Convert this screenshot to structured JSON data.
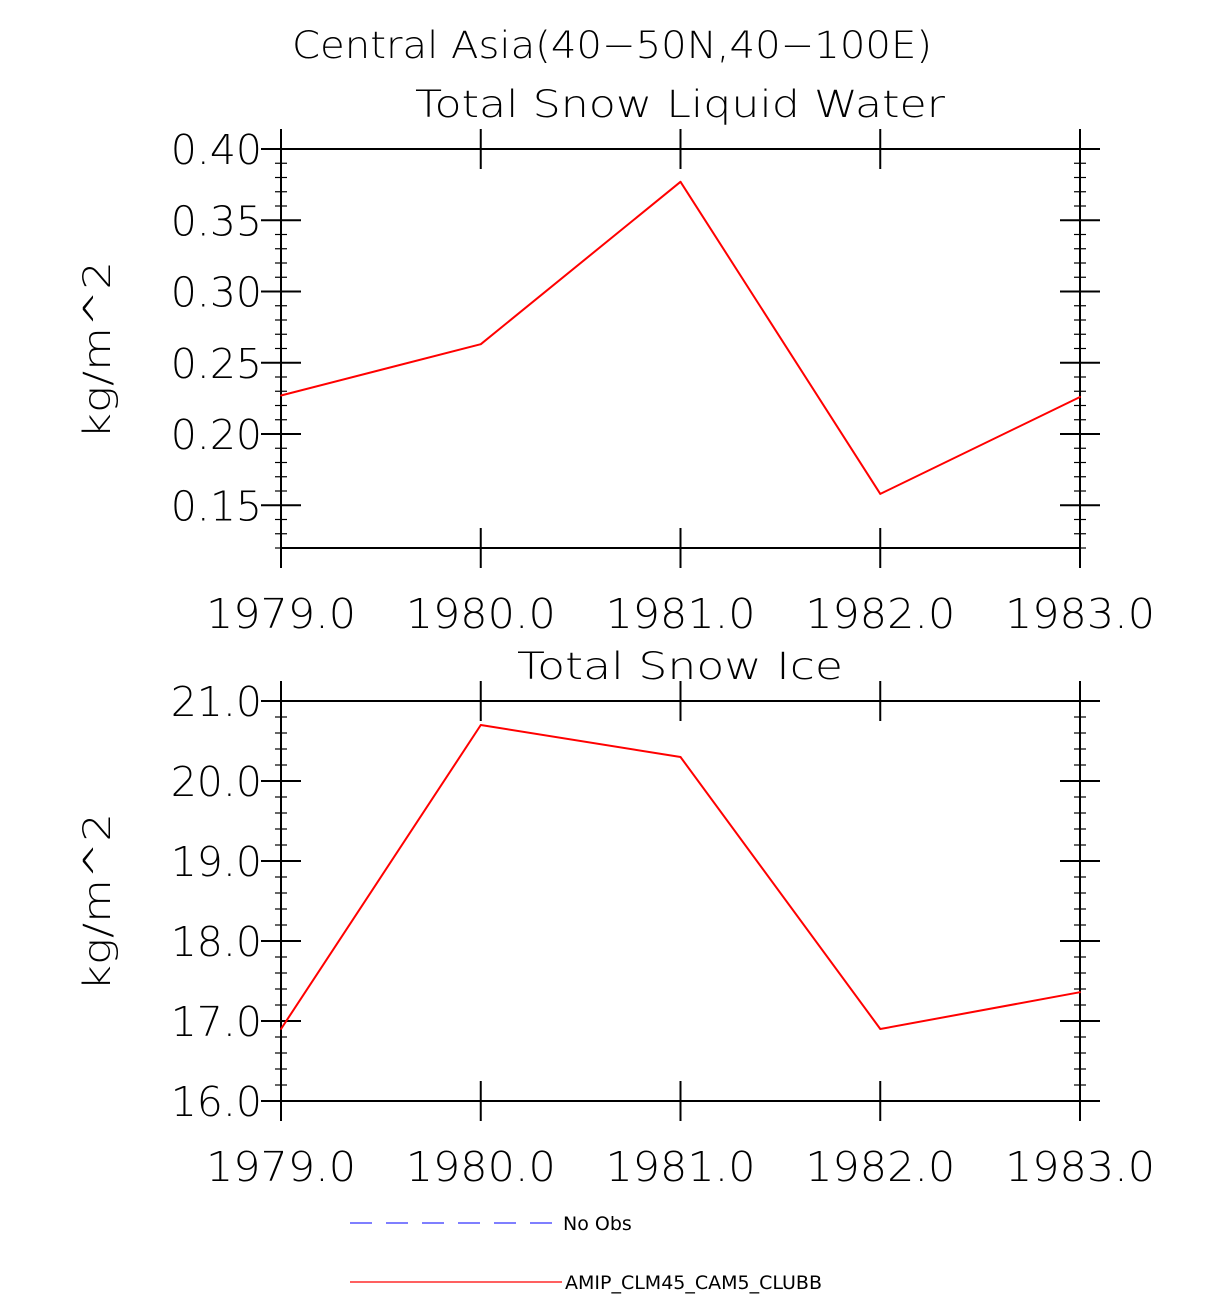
{
  "figure": {
    "title": "Central Asia(40−50N,40−100E)"
  },
  "chart_data": [
    {
      "type": "line",
      "title": "Total Snow Liquid Water",
      "xlabel": "",
      "ylabel": "kg/m^2",
      "x": [
        1979.0,
        1980.0,
        1981.0,
        1982.0,
        1983.0
      ],
      "xlim": [
        1979.0,
        1983.0
      ],
      "xticks": [
        "1979.0",
        "1980.0",
        "1981.0",
        "1982.0",
        "1983.0"
      ],
      "ylim": [
        0.12,
        0.4
      ],
      "yticks": [
        "0.40",
        "0.35",
        "0.30",
        "0.25",
        "0.20",
        "0.15"
      ],
      "ytick_values": [
        0.4,
        0.35,
        0.3,
        0.25,
        0.2,
        0.15
      ],
      "yminor_step": 0.01,
      "series": [
        {
          "name": "AMIP_CLM45_CAM5_CLUBB",
          "color": "#ff0000",
          "values": [
            0.227,
            0.263,
            0.377,
            0.158,
            0.226
          ]
        }
      ]
    },
    {
      "type": "line",
      "title": "Total Snow Ice",
      "xlabel": "",
      "ylabel": "kg/m^2",
      "x": [
        1979.0,
        1980.0,
        1981.0,
        1982.0,
        1983.0
      ],
      "xlim": [
        1979.0,
        1983.0
      ],
      "xticks": [
        "1979.0",
        "1980.0",
        "1981.0",
        "1982.0",
        "1983.0"
      ],
      "ylim": [
        16.0,
        21.0
      ],
      "yticks": [
        "21.0",
        "20.0",
        "19.0",
        "18.0",
        "17.0",
        "16.0"
      ],
      "ytick_values": [
        21.0,
        20.0,
        19.0,
        18.0,
        17.0,
        16.0
      ],
      "yminor_step": 0.2,
      "series": [
        {
          "name": "AMIP_CLM45_CAM5_CLUBB",
          "color": "#ff0000",
          "values": [
            16.9,
            20.7,
            20.3,
            16.9,
            17.36
          ]
        }
      ]
    }
  ],
  "legend": [
    {
      "label": "No Obs",
      "color": "#3333ff",
      "style": "dashed"
    },
    {
      "label": "AMIP_CLM45_CAM5_CLUBB",
      "color": "#ff0000",
      "style": "solid"
    }
  ]
}
